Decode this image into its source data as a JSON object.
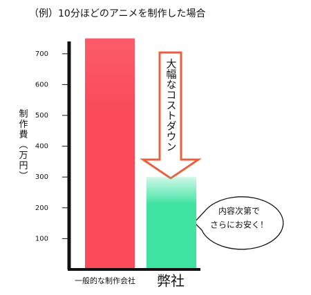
{
  "chart_data": {
    "type": "bar",
    "title": "（例）10分ほどのアニメを制作した場合",
    "y_label": "制作費（万円）",
    "categories": [
      "一般的な制作会社",
      "弊社"
    ],
    "values": [
      750,
      300
    ],
    "colors": [
      "#fb4a5a",
      "#3ee3a2"
    ],
    "ylim": [
      0,
      740
    ],
    "yticks": [
      100,
      200,
      300,
      400,
      500,
      600,
      700
    ],
    "grid": false,
    "annotations": {
      "arrow": "大幅なコストダウン",
      "bubble": [
        "内容次第で",
        "さらにお安く！"
      ]
    }
  }
}
